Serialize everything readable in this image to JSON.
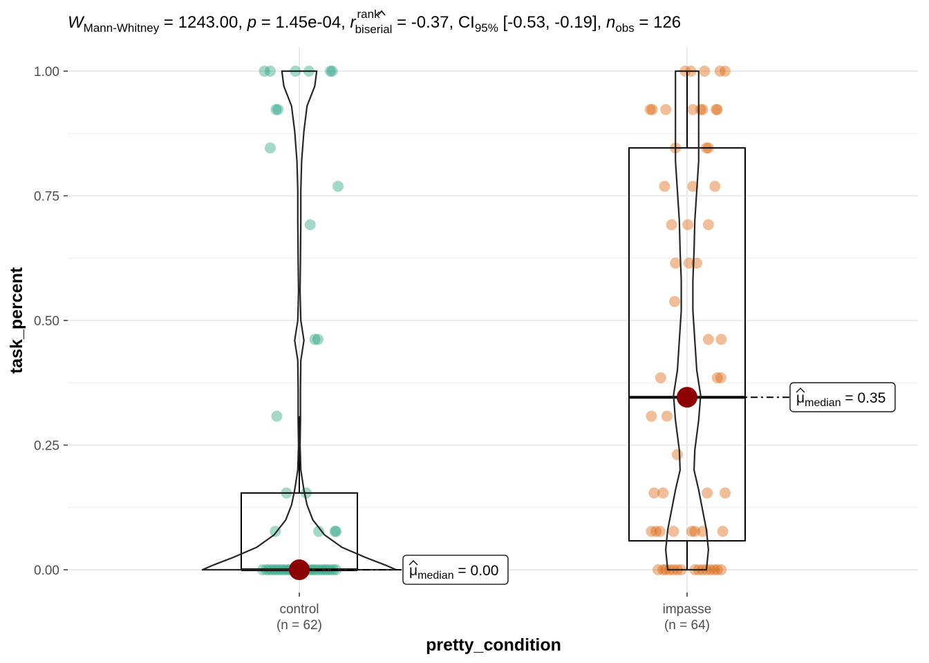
{
  "chart_data": {
    "type": "violin-box-scatter",
    "title": {
      "w_symbol": "W",
      "w_sub": "Mann-Whitney",
      "w_value": " = 1243.00, ",
      "p_symbol": "p",
      "p_value": " = 1.45e-04, ",
      "r_symbol": "r",
      "r_sup": "rank",
      "r_sub": "biserial",
      "r_value": " = -0.37, CI",
      "ci_sub": "95%",
      "ci_value": " [-0.53, -0.19], ",
      "n_symbol": "n",
      "n_sub": "obs",
      "n_value": " = 126"
    },
    "xlabel": "pretty_condition",
    "ylabel": "task_percent",
    "ylim": [
      0,
      1
    ],
    "y_ticks": [
      "0.00",
      "0.25",
      "0.50",
      "0.75",
      "1.00"
    ],
    "colors": {
      "control": "#1b9e77",
      "impasse": "#d95f02",
      "median_point": "#8b0000",
      "grid": "#ebebeb",
      "outline": "#262626"
    },
    "groups": [
      {
        "name": "control",
        "label": "control",
        "n_label": "(n = 62)",
        "box": {
          "q1": 0.0,
          "median": 0.0,
          "q3": 0.154,
          "whisker_low": 0.0,
          "whisker_high": 0.308
        },
        "median_label": "μ",
        "median_sub": "median",
        "median_value": " = 0.00",
        "points": [
          {
            "x": -0.09,
            "y": 1.0
          },
          {
            "x": -0.075,
            "y": 1.0
          },
          {
            "x": -0.01,
            "y": 1.0
          },
          {
            "x": 0.025,
            "y": 1.0
          },
          {
            "x": 0.08,
            "y": 1.0
          },
          {
            "x": 0.085,
            "y": 1.0
          },
          {
            "x": -0.06,
            "y": 0.923
          },
          {
            "x": -0.055,
            "y": 0.923
          },
          {
            "x": -0.075,
            "y": 0.846
          },
          {
            "x": 0.1,
            "y": 0.769
          },
          {
            "x": 0.028,
            "y": 0.692
          },
          {
            "x": 0.04,
            "y": 0.462
          },
          {
            "x": 0.048,
            "y": 0.462
          },
          {
            "x": -0.058,
            "y": 0.308
          },
          {
            "x": -0.033,
            "y": 0.154
          },
          {
            "x": 0.018,
            "y": 0.154
          },
          {
            "x": -0.062,
            "y": 0.077
          },
          {
            "x": 0.05,
            "y": 0.077
          },
          {
            "x": 0.092,
            "y": 0.077
          },
          {
            "x": 0.095,
            "y": 0.077
          },
          {
            "x": -0.095,
            "y": 0.0
          },
          {
            "x": -0.085,
            "y": 0.0
          },
          {
            "x": -0.078,
            "y": 0.0
          },
          {
            "x": -0.07,
            "y": 0.0
          },
          {
            "x": -0.062,
            "y": 0.0
          },
          {
            "x": -0.055,
            "y": 0.0
          },
          {
            "x": -0.047,
            "y": 0.0
          },
          {
            "x": -0.04,
            "y": 0.0
          },
          {
            "x": -0.032,
            "y": 0.0
          },
          {
            "x": -0.025,
            "y": 0.0
          },
          {
            "x": -0.018,
            "y": 0.0
          },
          {
            "x": -0.01,
            "y": 0.0
          },
          {
            "x": -0.003,
            "y": 0.0
          },
          {
            "x": 0.005,
            "y": 0.0
          },
          {
            "x": 0.012,
            "y": 0.0
          },
          {
            "x": 0.02,
            "y": 0.0
          },
          {
            "x": 0.028,
            "y": 0.0
          },
          {
            "x": 0.035,
            "y": 0.0
          },
          {
            "x": 0.042,
            "y": 0.0
          },
          {
            "x": 0.05,
            "y": 0.0
          },
          {
            "x": 0.058,
            "y": 0.0
          },
          {
            "x": 0.065,
            "y": 0.0
          },
          {
            "x": 0.072,
            "y": 0.0
          },
          {
            "x": 0.08,
            "y": 0.0
          },
          {
            "x": 0.088,
            "y": 0.0
          },
          {
            "x": 0.095,
            "y": 0.0
          }
        ],
        "violin": [
          {
            "y": 0.0,
            "w": 0.25
          },
          {
            "y": 0.01,
            "w": 0.22
          },
          {
            "y": 0.025,
            "w": 0.17
          },
          {
            "y": 0.045,
            "w": 0.11
          },
          {
            "y": 0.07,
            "w": 0.065
          },
          {
            "y": 0.1,
            "w": 0.035
          },
          {
            "y": 0.13,
            "w": 0.02
          },
          {
            "y": 0.16,
            "w": 0.012
          },
          {
            "y": 0.2,
            "w": 0.004
          },
          {
            "y": 0.25,
            "w": 0.002
          },
          {
            "y": 0.3,
            "w": 0.003
          },
          {
            "y": 0.36,
            "w": 0.003
          },
          {
            "y": 0.42,
            "w": 0.004
          },
          {
            "y": 0.46,
            "w": 0.012
          },
          {
            "y": 0.5,
            "w": 0.004
          },
          {
            "y": 0.56,
            "w": 0.002
          },
          {
            "y": 0.62,
            "w": 0.003
          },
          {
            "y": 0.7,
            "w": 0.004
          },
          {
            "y": 0.76,
            "w": 0.004
          },
          {
            "y": 0.82,
            "w": 0.006
          },
          {
            "y": 0.88,
            "w": 0.012
          },
          {
            "y": 0.93,
            "w": 0.02
          },
          {
            "y": 0.97,
            "w": 0.04
          },
          {
            "y": 1.0,
            "w": 0.045
          }
        ]
      },
      {
        "name": "impasse",
        "label": "impasse",
        "n_label": "(n = 64)",
        "box": {
          "q1": 0.058,
          "median": 0.346,
          "q3": 0.846,
          "whisker_low": 0.0,
          "whisker_high": 1.0
        },
        "median_label": "μ",
        "median_sub": "median",
        "median_value": " = 0.35",
        "points": [
          {
            "x": -0.005,
            "y": 1.0
          },
          {
            "x": 0.01,
            "y": 1.0
          },
          {
            "x": 0.045,
            "y": 1.0
          },
          {
            "x": 0.085,
            "y": 1.0
          },
          {
            "x": 0.098,
            "y": 1.0
          },
          {
            "x": -0.095,
            "y": 0.923
          },
          {
            "x": -0.09,
            "y": 0.923
          },
          {
            "x": -0.055,
            "y": 0.923
          },
          {
            "x": 0.015,
            "y": 0.923
          },
          {
            "x": 0.035,
            "y": 0.923
          },
          {
            "x": 0.04,
            "y": 0.923
          },
          {
            "x": 0.075,
            "y": 0.923
          },
          {
            "x": 0.078,
            "y": 0.923
          },
          {
            "x": -0.03,
            "y": 0.846
          },
          {
            "x": 0.05,
            "y": 0.846
          },
          {
            "x": 0.055,
            "y": 0.846
          },
          {
            "x": -0.058,
            "y": 0.769
          },
          {
            "x": 0.015,
            "y": 0.769
          },
          {
            "x": 0.072,
            "y": 0.769
          },
          {
            "x": -0.04,
            "y": 0.692
          },
          {
            "x": 0.002,
            "y": 0.692
          },
          {
            "x": 0.055,
            "y": 0.692
          },
          {
            "x": -0.03,
            "y": 0.615
          },
          {
            "x": 0.005,
            "y": 0.615
          },
          {
            "x": 0.025,
            "y": 0.615
          },
          {
            "x": -0.032,
            "y": 0.538
          },
          {
            "x": 0.055,
            "y": 0.462
          },
          {
            "x": 0.088,
            "y": 0.462
          },
          {
            "x": -0.068,
            "y": 0.385
          },
          {
            "x": 0.078,
            "y": 0.385
          },
          {
            "x": 0.087,
            "y": 0.385
          },
          {
            "x": -0.092,
            "y": 0.308
          },
          {
            "x": -0.052,
            "y": 0.308
          },
          {
            "x": -0.025,
            "y": 0.231
          },
          {
            "x": -0.085,
            "y": 0.154
          },
          {
            "x": -0.062,
            "y": 0.154
          },
          {
            "x": 0.052,
            "y": 0.154
          },
          {
            "x": 0.098,
            "y": 0.154
          },
          {
            "x": -0.092,
            "y": 0.077
          },
          {
            "x": -0.08,
            "y": 0.077
          },
          {
            "x": -0.07,
            "y": 0.077
          },
          {
            "x": -0.035,
            "y": 0.077
          },
          {
            "x": 0.012,
            "y": 0.077
          },
          {
            "x": 0.02,
            "y": 0.077
          },
          {
            "x": 0.04,
            "y": 0.077
          },
          {
            "x": 0.092,
            "y": 0.077
          },
          {
            "x": -0.075,
            "y": 0.0
          },
          {
            "x": -0.062,
            "y": 0.0
          },
          {
            "x": -0.055,
            "y": 0.0
          },
          {
            "x": -0.045,
            "y": 0.0
          },
          {
            "x": -0.035,
            "y": 0.0
          },
          {
            "x": -0.025,
            "y": 0.0
          },
          {
            "x": -0.015,
            "y": 0.0
          },
          {
            "x": 0.02,
            "y": 0.0
          },
          {
            "x": 0.03,
            "y": 0.0
          },
          {
            "x": 0.04,
            "y": 0.0
          },
          {
            "x": 0.05,
            "y": 0.0
          },
          {
            "x": 0.06,
            "y": 0.0
          },
          {
            "x": 0.07,
            "y": 0.0
          },
          {
            "x": 0.078,
            "y": 0.0
          },
          {
            "x": 0.088,
            "y": 0.0
          }
        ],
        "violin": [
          {
            "y": 0.0,
            "w": 0.05
          },
          {
            "y": 0.04,
            "w": 0.055
          },
          {
            "y": 0.08,
            "w": 0.05
          },
          {
            "y": 0.12,
            "w": 0.04
          },
          {
            "y": 0.16,
            "w": 0.03
          },
          {
            "y": 0.2,
            "w": 0.018
          },
          {
            "y": 0.24,
            "w": 0.02
          },
          {
            "y": 0.3,
            "w": 0.03
          },
          {
            "y": 0.35,
            "w": 0.035
          },
          {
            "y": 0.4,
            "w": 0.025
          },
          {
            "y": 0.46,
            "w": 0.02
          },
          {
            "y": 0.52,
            "w": 0.015
          },
          {
            "y": 0.58,
            "w": 0.015
          },
          {
            "y": 0.64,
            "w": 0.018
          },
          {
            "y": 0.7,
            "w": 0.02
          },
          {
            "y": 0.76,
            "w": 0.025
          },
          {
            "y": 0.82,
            "w": 0.03
          },
          {
            "y": 0.88,
            "w": 0.03
          },
          {
            "y": 0.94,
            "w": 0.03
          },
          {
            "y": 1.0,
            "w": 0.03
          }
        ]
      }
    ]
  }
}
